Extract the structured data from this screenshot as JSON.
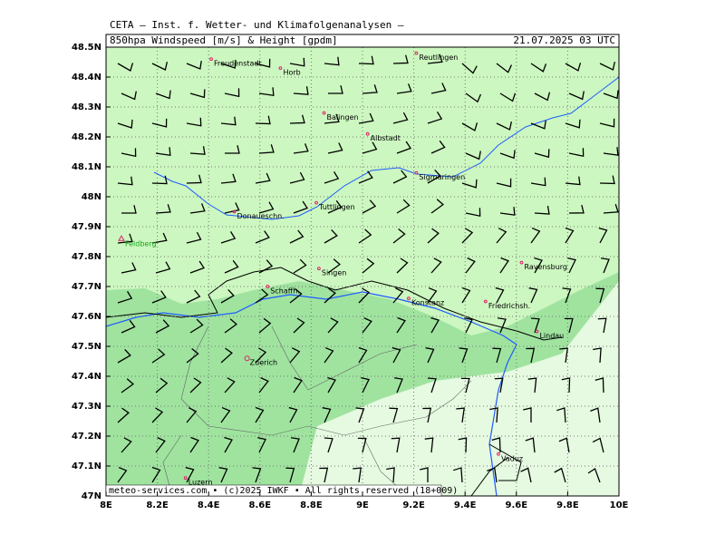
{
  "header": {
    "institute": "CETA – Inst. f. Wetter- und Klimafolgenanalysen –",
    "product": "850hpa Windspeed [m/s] & Height [gpdm]",
    "valid": "21.07.2025 03 UTC"
  },
  "footer": "meteo-services.com • (c)2025 IWKF • All rights reserved (18+009)",
  "map": {
    "xlim": [
      8,
      10
    ],
    "ylim": [
      47,
      48.5
    ],
    "xticks": [
      {
        "value": 8,
        "label": "8E"
      },
      {
        "value": 8.2,
        "label": "8.2E"
      },
      {
        "value": 8.4,
        "label": "8.4E"
      },
      {
        "value": 8.6,
        "label": "8.6E"
      },
      {
        "value": 8.8,
        "label": "8.8E"
      },
      {
        "value": 9,
        "label": "9E"
      },
      {
        "value": 9.2,
        "label": "9.2E"
      },
      {
        "value": 9.4,
        "label": "9.4E"
      },
      {
        "value": 9.6,
        "label": "9.6E"
      },
      {
        "value": 9.8,
        "label": "9.8E"
      },
      {
        "value": 10,
        "label": "10E"
      }
    ],
    "yticks": [
      {
        "value": 47,
        "label": "47N"
      },
      {
        "value": 47.1,
        "label": "47.1N"
      },
      {
        "value": 47.2,
        "label": "47.2N"
      },
      {
        "value": 47.3,
        "label": "47.3N"
      },
      {
        "value": 47.4,
        "label": "47.4N"
      },
      {
        "value": 47.5,
        "label": "47.5N"
      },
      {
        "value": 47.6,
        "label": "47.6N"
      },
      {
        "value": 47.7,
        "label": "47.7N"
      },
      {
        "value": 47.8,
        "label": "47.8N"
      },
      {
        "value": 47.9,
        "label": "47.9N"
      },
      {
        "value": 48,
        "label": "48N"
      },
      {
        "value": 48.1,
        "label": "48.1N"
      },
      {
        "value": 48.2,
        "label": "48.2N"
      },
      {
        "value": 48.3,
        "label": "48.3N"
      },
      {
        "value": 48.4,
        "label": "48.4N"
      },
      {
        "value": 48.5,
        "label": "48.5N"
      }
    ],
    "places": [
      {
        "name": "Freudenstadt",
        "lon": 8.41,
        "lat": 48.46
      },
      {
        "name": "Horb",
        "lon": 8.68,
        "lat": 48.43
      },
      {
        "name": "Reutlingen",
        "lon": 9.21,
        "lat": 48.48
      },
      {
        "name": "Balingen",
        "lon": 8.85,
        "lat": 48.28
      },
      {
        "name": "Albstadt",
        "lon": 9.02,
        "lat": 48.21
      },
      {
        "name": "Sigmaringen",
        "lon": 9.21,
        "lat": 48.08
      },
      {
        "name": "Tuttlingen",
        "lon": 8.82,
        "lat": 47.98
      },
      {
        "name": "Donaueschn.",
        "lon": 8.5,
        "lat": 47.95
      },
      {
        "name": "Feldberg",
        "lon": 8.06,
        "lat": 47.86
      },
      {
        "name": "Singen",
        "lon": 8.83,
        "lat": 47.76
      },
      {
        "name": "Schaffh.",
        "lon": 8.63,
        "lat": 47.7
      },
      {
        "name": "Konstanz",
        "lon": 9.18,
        "lat": 47.66
      },
      {
        "name": "Friedrichsh.",
        "lon": 9.48,
        "lat": 47.65
      },
      {
        "name": "Ravensburg",
        "lon": 9.62,
        "lat": 47.78
      },
      {
        "name": "Lindau",
        "lon": 9.68,
        "lat": 47.55
      },
      {
        "name": "Zuerich",
        "lon": 8.55,
        "lat": 47.46
      },
      {
        "name": "Vaduz",
        "lon": 9.53,
        "lat": 47.14
      },
      {
        "name": "Luzern",
        "lon": 8.31,
        "lat": 47.06
      }
    ]
  }
}
